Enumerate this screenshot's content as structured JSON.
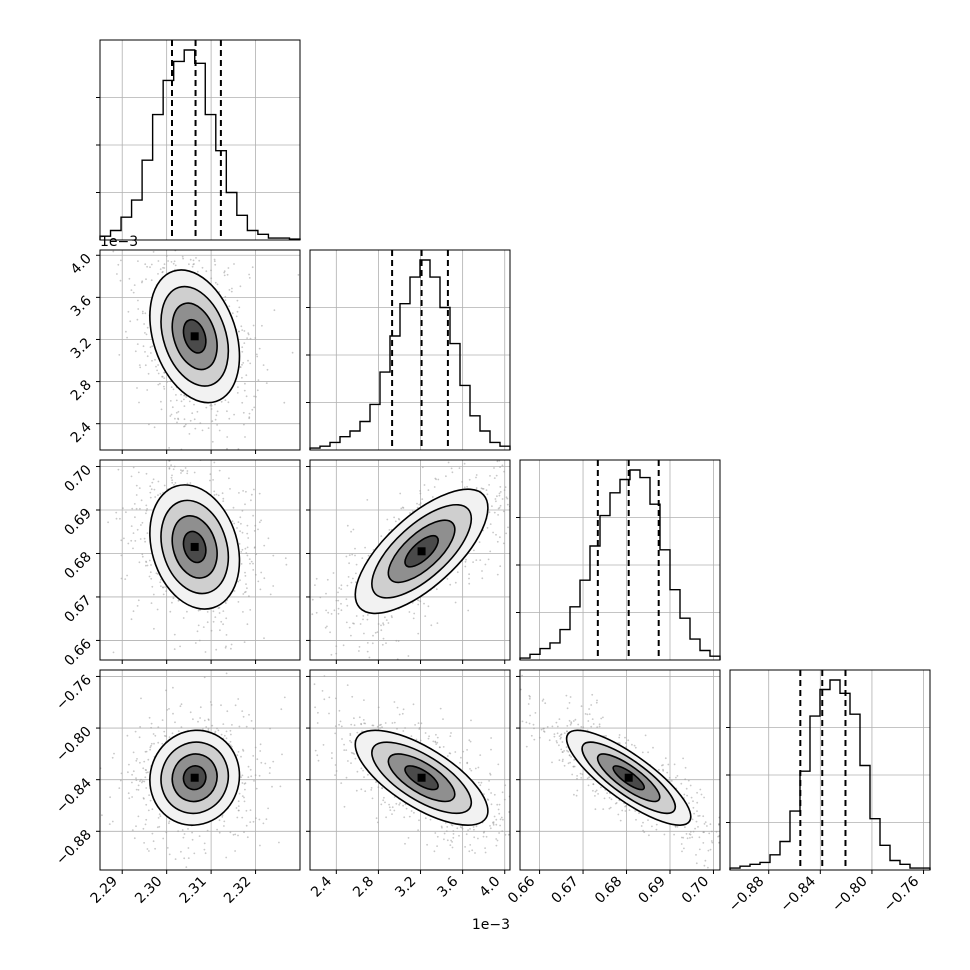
{
  "chart_data": {
    "type": "corner",
    "grid": true,
    "parameters": [
      {
        "index": 0,
        "range": [
          2.285,
          2.33
        ],
        "ticks": [
          2.29,
          2.3,
          2.31,
          2.32
        ],
        "tick_labels": [
          "2.29",
          "2.30",
          "2.31",
          "2.32"
        ],
        "offset_label": "",
        "quantiles": [
          2.3012,
          2.3065,
          2.3122
        ],
        "histogram": [
          0.02,
          0.05,
          0.12,
          0.21,
          0.42,
          0.66,
          0.84,
          0.94,
          1.0,
          0.93,
          0.66,
          0.47,
          0.25,
          0.13,
          0.05,
          0.03,
          0.01,
          0.01,
          0.005
        ]
      },
      {
        "index": 1,
        "range": [
          2.15,
          4.05
        ],
        "ticks": [
          2.4,
          2.8,
          3.2,
          3.6,
          4.0
        ],
        "tick_labels": [
          "2.4",
          "2.8",
          "3.2",
          "3.6",
          "4.0"
        ],
        "offset_label": "1e−3",
        "quantiles": [
          2.93,
          3.21,
          3.46
        ],
        "histogram": [
          0.01,
          0.02,
          0.04,
          0.07,
          0.1,
          0.15,
          0.24,
          0.41,
          0.6,
          0.77,
          0.91,
          1.0,
          0.91,
          0.75,
          0.56,
          0.34,
          0.18,
          0.1,
          0.04,
          0.02
        ]
      },
      {
        "index": 2,
        "range": [
          0.6555,
          0.7015
        ],
        "ticks": [
          0.66,
          0.67,
          0.68,
          0.69,
          0.7
        ],
        "tick_labels": [
          "0.66",
          "0.67",
          "0.68",
          "0.69",
          "0.70"
        ],
        "offset_label": "",
        "quantiles": [
          0.6734,
          0.6805,
          0.6874
        ],
        "histogram": [
          0.01,
          0.03,
          0.06,
          0.09,
          0.16,
          0.28,
          0.42,
          0.6,
          0.76,
          0.88,
          0.95,
          1.0,
          0.96,
          0.82,
          0.58,
          0.37,
          0.22,
          0.11,
          0.05,
          0.02
        ]
      },
      {
        "index": 3,
        "range": [
          -0.91,
          -0.755
        ],
        "ticks": [
          -0.88,
          -0.84,
          -0.8,
          -0.76
        ],
        "tick_labels": [
          "−0.88",
          "−0.84",
          "−0.80",
          "−0.76"
        ],
        "offset_label": "",
        "quantiles": [
          -0.8555,
          -0.8385,
          -0.8205
        ],
        "histogram": [
          0.01,
          0.02,
          0.03,
          0.04,
          0.08,
          0.15,
          0.31,
          0.52,
          0.81,
          0.95,
          1.0,
          0.93,
          0.82,
          0.55,
          0.27,
          0.13,
          0.05,
          0.03,
          0.01,
          0.01
        ]
      }
    ],
    "panels_2d": [
      {
        "x": 0,
        "y": 1,
        "center": [
          2.3063,
          3.23
        ],
        "spread": [
          0.0048,
          0.3
        ],
        "correlation": -0.3
      },
      {
        "x": 0,
        "y": 2,
        "center": [
          2.3063,
          0.6815
        ],
        "spread": [
          0.0048,
          0.0068
        ],
        "correlation": -0.22
      },
      {
        "x": 1,
        "y": 2,
        "center": [
          3.21,
          0.6805
        ],
        "spread": [
          0.3,
          0.0068
        ],
        "correlation": 0.7
      },
      {
        "x": 0,
        "y": 3,
        "center": [
          2.3063,
          -0.8385
        ],
        "spread": [
          0.0048,
          0.0175
        ],
        "correlation": 0.05
      },
      {
        "x": 1,
        "y": 3,
        "center": [
          3.21,
          -0.8385
        ],
        "spread": [
          0.3,
          0.0175
        ],
        "correlation": -0.7
      },
      {
        "x": 2,
        "y": 3,
        "center": [
          0.6805,
          -0.8385
        ],
        "spread": [
          0.0068,
          0.0175
        ],
        "correlation": -0.82
      }
    ],
    "contour_levels_sigma": [
      0.5,
      1.0,
      1.5,
      2.0
    ]
  }
}
